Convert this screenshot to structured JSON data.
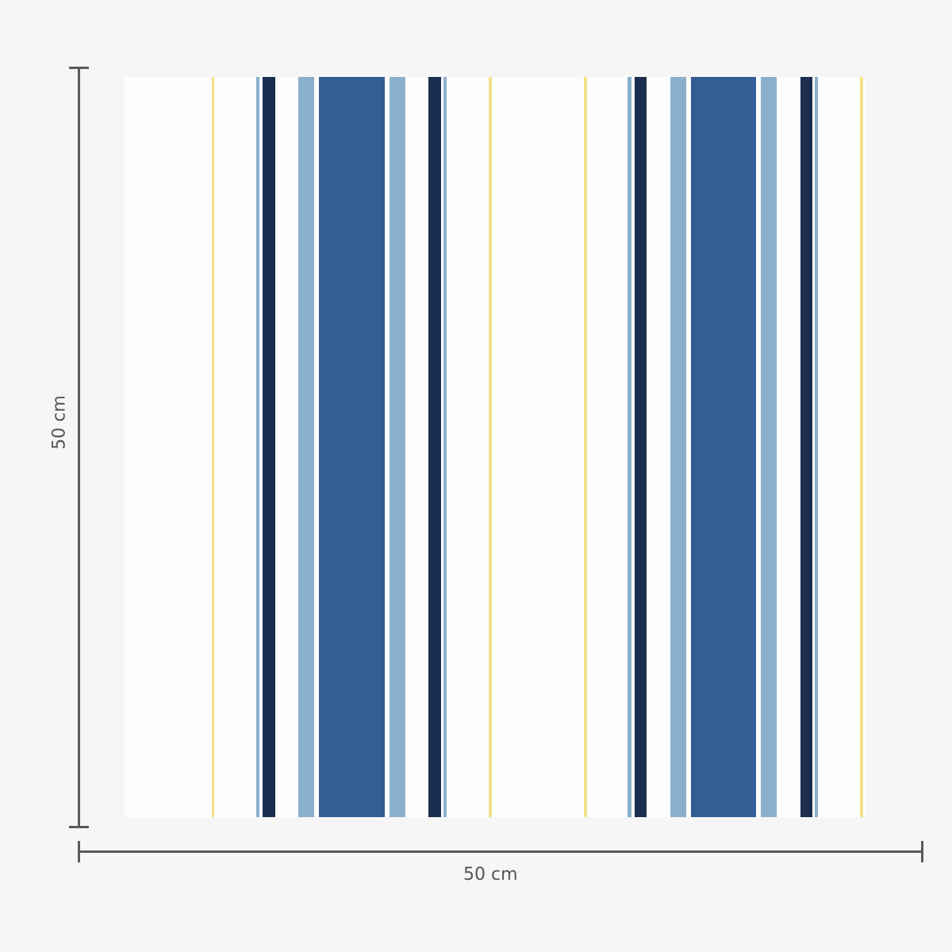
{
  "dimensions": {
    "width_label": "50 cm",
    "height_label": "50 cm"
  },
  "colors": {
    "background": "#fdfdfd",
    "yellow": "#f0e08a",
    "light_blue": "#8ab0cc",
    "navy": "#1c2e50",
    "blue": "#345d96",
    "ruler": "#5a5a5a"
  }
}
